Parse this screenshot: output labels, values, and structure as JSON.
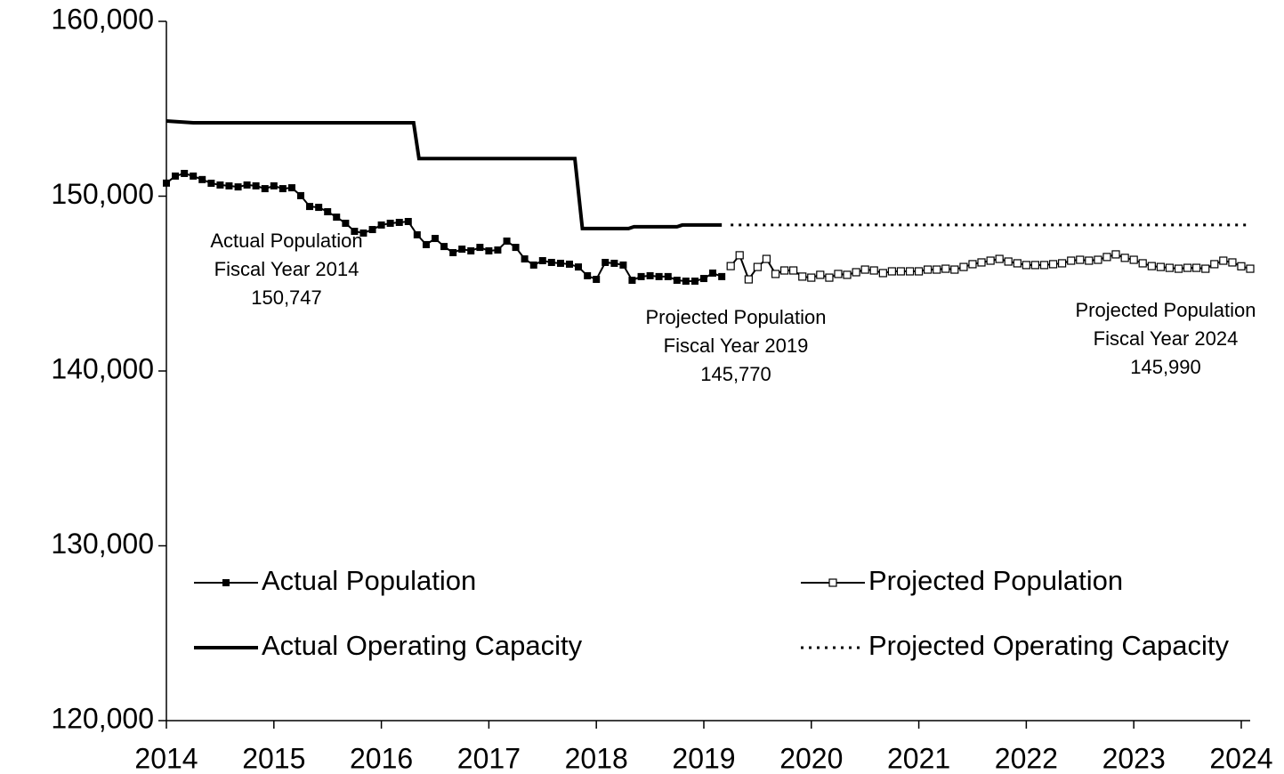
{
  "chart_data": {
    "type": "line",
    "xlim": [
      2014,
      2024.083
    ],
    "xticks": [
      2014,
      2015,
      2016,
      2017,
      2018,
      2019,
      2020,
      2021,
      2022,
      2023,
      2024
    ],
    "ylim": [
      120000,
      160000
    ],
    "yticks": [
      {
        "value": 120000,
        "label": "120,000"
      },
      {
        "value": 130000,
        "label": "130,000"
      },
      {
        "value": 140000,
        "label": "140,000"
      },
      {
        "value": 150000,
        "label": "150,000"
      },
      {
        "value": 160000,
        "label": "160,000"
      }
    ],
    "grid": false,
    "series": [
      {
        "name": "Actual Population",
        "color": "#000000",
        "marker": "filled-square",
        "dash": false,
        "x": [
          2014,
          2014.083,
          2014.167,
          2014.25,
          2014.333,
          2014.417,
          2014.5,
          2014.583,
          2014.667,
          2014.75,
          2014.833,
          2014.917,
          2015,
          2015.083,
          2015.167,
          2015.25,
          2015.333,
          2015.417,
          2015.5,
          2015.583,
          2015.667,
          2015.75,
          2015.833,
          2015.917,
          2016,
          2016.083,
          2016.167,
          2016.25,
          2016.333,
          2016.417,
          2016.5,
          2016.583,
          2016.667,
          2016.75,
          2016.833,
          2016.917,
          2017,
          2017.083,
          2017.167,
          2017.25,
          2017.333,
          2017.417,
          2017.5,
          2017.583,
          2017.667,
          2017.75,
          2017.833,
          2017.917,
          2018,
          2018.083,
          2018.167,
          2018.25,
          2018.333,
          2018.417,
          2018.5,
          2018.583,
          2018.667,
          2018.75,
          2018.833,
          2018.917,
          2019,
          2019.083,
          2019.167
        ],
        "values": [
          150747,
          151150,
          151300,
          151150,
          150950,
          150740,
          150640,
          150590,
          150530,
          150640,
          150590,
          150430,
          150590,
          150430,
          150480,
          150030,
          149410,
          149360,
          149110,
          148800,
          148450,
          147990,
          147890,
          148090,
          148350,
          148450,
          148500,
          148550,
          147790,
          147230,
          147580,
          147120,
          146770,
          146970,
          146870,
          147070,
          146870,
          146920,
          147430,
          147070,
          146410,
          146060,
          146310,
          146210,
          146160,
          146110,
          145950,
          145450,
          145240,
          146210,
          146160,
          146060,
          145190,
          145400,
          145450,
          145400,
          145400,
          145190,
          145140,
          145140,
          145290,
          145600,
          145400
        ]
      },
      {
        "name": "Projected Population",
        "color": "#000000",
        "marker": "open-square",
        "dash": false,
        "x": [
          2019.25,
          2019.333,
          2019.417,
          2019.5,
          2019.583,
          2019.667,
          2019.75,
          2019.833,
          2019.917,
          2020,
          2020.083,
          2020.167,
          2020.25,
          2020.333,
          2020.417,
          2020.5,
          2020.583,
          2020.667,
          2020.75,
          2020.833,
          2020.917,
          2021,
          2021.083,
          2021.167,
          2021.25,
          2021.333,
          2021.417,
          2021.5,
          2021.583,
          2021.667,
          2021.75,
          2021.833,
          2021.917,
          2022,
          2022.083,
          2022.167,
          2022.25,
          2022.333,
          2022.417,
          2022.5,
          2022.583,
          2022.667,
          2022.75,
          2022.833,
          2022.917,
          2023,
          2023.083,
          2023.167,
          2023.25,
          2023.333,
          2023.417,
          2023.5,
          2023.583,
          2023.667,
          2023.75,
          2023.833,
          2023.917,
          2024,
          2024.083
        ],
        "values": [
          146000,
          146620,
          145240,
          145950,
          146410,
          145550,
          145750,
          145750,
          145400,
          145340,
          145500,
          145340,
          145550,
          145500,
          145650,
          145800,
          145750,
          145600,
          145700,
          145700,
          145700,
          145700,
          145800,
          145800,
          145850,
          145800,
          145950,
          146110,
          146210,
          146310,
          146410,
          146260,
          146160,
          146060,
          146060,
          146060,
          146110,
          146160,
          146310,
          146360,
          146310,
          146360,
          146520,
          146670,
          146470,
          146360,
          146160,
          146000,
          145950,
          145900,
          145850,
          145900,
          145900,
          145850,
          146110,
          146310,
          146210,
          145990,
          145850
        ]
      },
      {
        "name": "Actual Operating Capacity",
        "color": "#000000",
        "marker": "none",
        "dash": false,
        "x": [
          2014,
          2014.25,
          2016.3,
          2016.35,
          2017.8,
          2017.87,
          2018.3,
          2018.35,
          2018.75,
          2018.8,
          2019.167
        ],
        "values": [
          154300,
          154200,
          154200,
          152150,
          152150,
          148150,
          148150,
          148250,
          148250,
          148350,
          148350
        ]
      },
      {
        "name": "Projected Operating Capacity",
        "color": "#000000",
        "marker": "none",
        "dash": true,
        "x": [
          2019.25,
          2024.083
        ],
        "values": [
          148350,
          148350
        ]
      }
    ],
    "annotations": [
      {
        "lines": [
          "Actual Population",
          "Fiscal Year 2014",
          "150,747"
        ]
      },
      {
        "lines": [
          "Projected Population",
          "Fiscal Year 2019",
          "145,770"
        ]
      },
      {
        "lines": [
          "Projected Population",
          "Fiscal Year 2024",
          "145,990"
        ]
      }
    ]
  }
}
